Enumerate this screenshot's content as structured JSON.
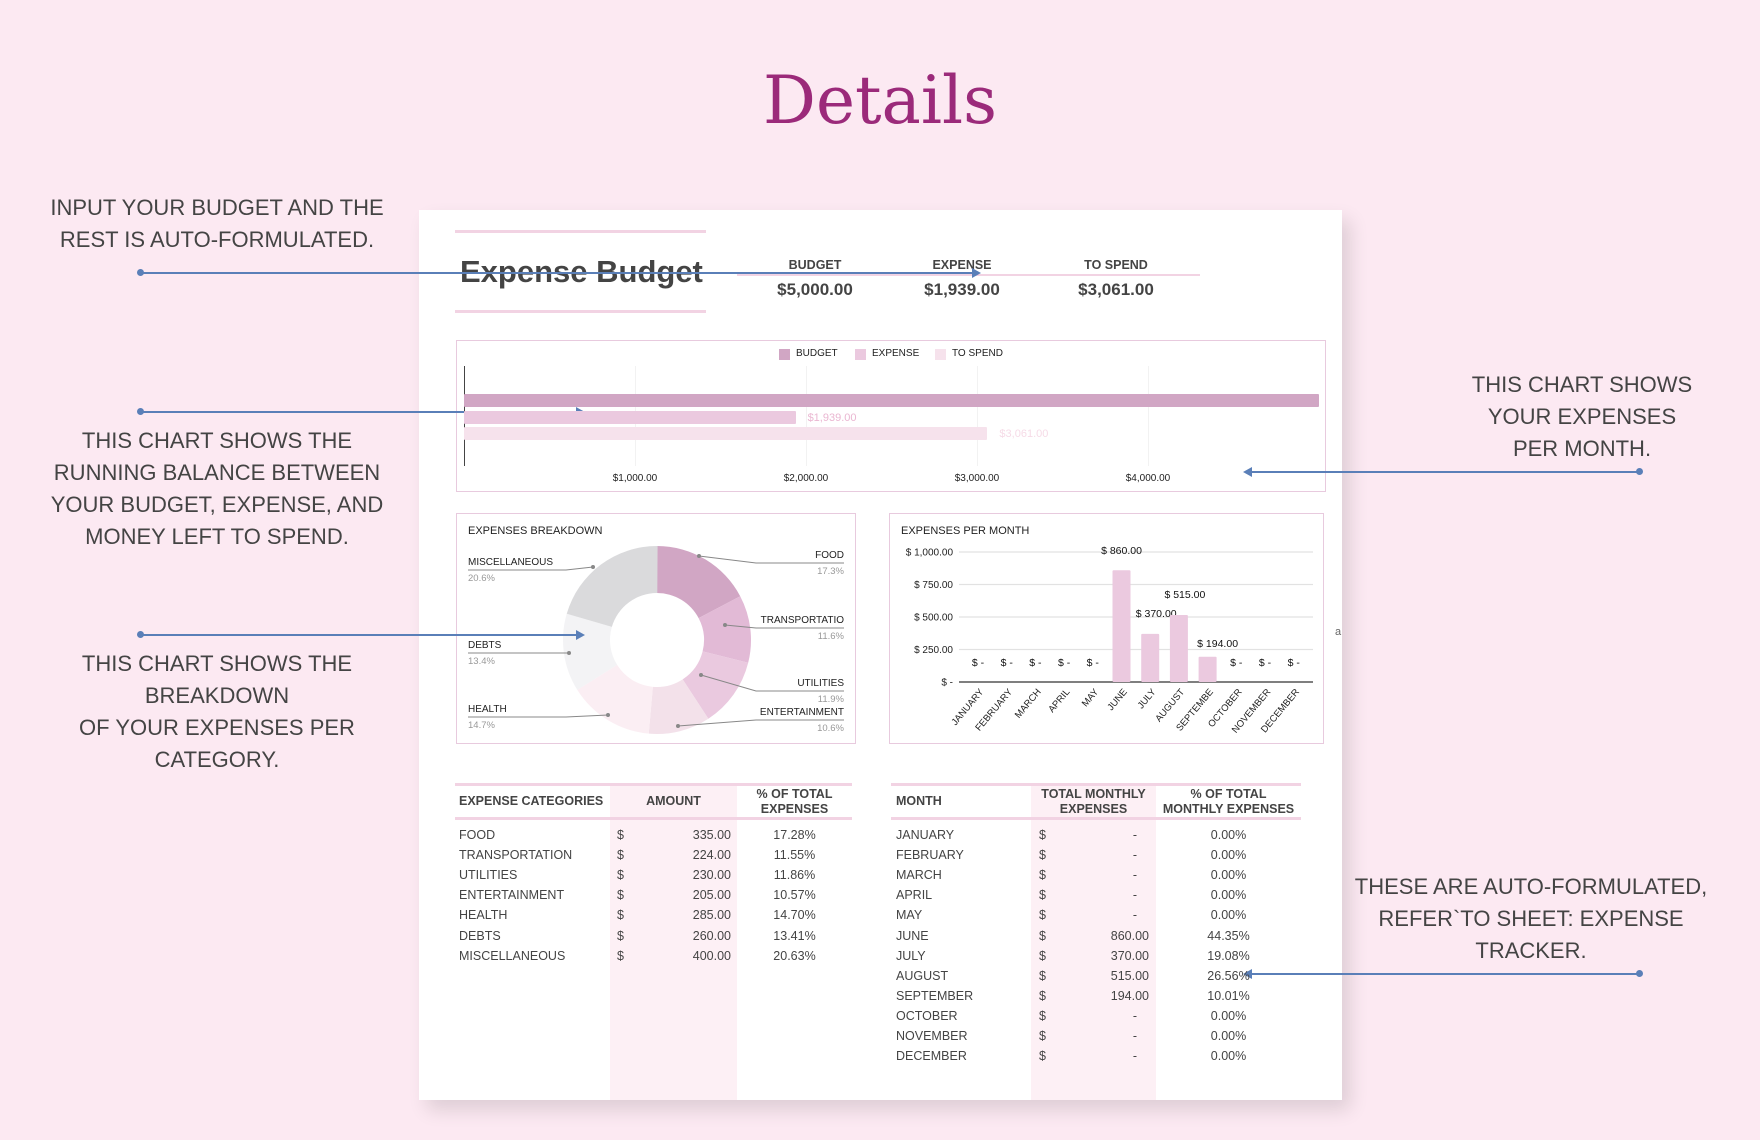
{
  "page_title": "Details",
  "notes": {
    "budget_input": "INPUT YOUR BUDGET AND THE\nREST IS AUTO-FORMULATED.",
    "running_balance": "THIS CHART SHOWS THE\nRUNNING BALANCE BETWEEN\nYOUR BUDGET, EXPENSE, AND\nMONEY LEFT TO SPEND.",
    "breakdown": "THIS CHART SHOWS THE\nBREAKDOWN\nOF YOUR EXPENSES PER\nCATEGORY.",
    "per_month": "THIS CHART SHOWS\nYOUR EXPENSES\nPER MONTH.",
    "auto": "THESE ARE AUTO-FORMULATED,\nREFER`TO SHEET: EXPENSE\nTRACKER.",
    "stray": "a"
  },
  "sheet": {
    "title": "Expense Budget",
    "summary": [
      {
        "label": "BUDGET",
        "value": "$5,000.00"
      },
      {
        "label": "EXPENSE",
        "value": "$1,939.00"
      },
      {
        "label": "TO SPEND",
        "value": "$3,061.00"
      }
    ]
  },
  "colors": {
    "accent": "#9b2a7a",
    "budget": "#d1a6c4",
    "expense": "#ebc9df",
    "to_spend": "#f6e2ec",
    "arrow": "#5a7fb8"
  },
  "chart_data": [
    {
      "type": "bar",
      "orientation": "horizontal",
      "legend": [
        "BUDGET",
        "EXPENSE",
        "TO SPEND"
      ],
      "legend_position": "top",
      "series": [
        {
          "name": "BUDGET",
          "value": 5000,
          "label": ""
        },
        {
          "name": "EXPENSE",
          "value": 1939,
          "label": "$1,939.00"
        },
        {
          "name": "TO SPEND",
          "value": 3061,
          "label": "$3,061.00"
        }
      ],
      "xticks": [
        "$1,000.00",
        "$2,000.00",
        "$3,000.00",
        "$4,000.00"
      ],
      "xtick_values": [
        1000,
        2000,
        3000,
        4000
      ],
      "xlim": [
        0,
        5000
      ]
    },
    {
      "type": "pie",
      "donut": true,
      "title": "EXPENSES BREAKDOWN",
      "slices": [
        {
          "label": "FOOD",
          "pct": "17.3%",
          "value": 17.3,
          "color": "#d1a6c4"
        },
        {
          "label": "TRANSPORTATIO",
          "pct": "11.6%",
          "value": 11.6,
          "color": "#e2bad6"
        },
        {
          "label": "UTILITIES",
          "pct": "11.9%",
          "value": 11.9,
          "color": "#eac9df"
        },
        {
          "label": "ENTERTAINMENT",
          "pct": "10.6%",
          "value": 10.6,
          "color": "#f3e1ea"
        },
        {
          "label": "HEALTH",
          "pct": "14.7%",
          "value": 14.7,
          "color": "#fbeef3"
        },
        {
          "label": "DEBTS",
          "pct": "13.4%",
          "value": 13.4,
          "color": "#f3f3f5"
        },
        {
          "label": "MISCELLANEOUS",
          "pct": "20.6%",
          "value": 20.6,
          "color": "#dadadc"
        }
      ]
    },
    {
      "type": "bar",
      "title": "EXPENSES PER MONTH",
      "categories": [
        "JANUARY",
        "FEBRUARY",
        "MARCH",
        "APRIL",
        "MAY",
        "JUNE",
        "JULY",
        "AUGUST",
        "SEPTEMBE",
        "OCTOBER",
        "NOVEMBER",
        "DECEMBER"
      ],
      "values": [
        0,
        0,
        0,
        0,
        0,
        860,
        370,
        515,
        194,
        0,
        0,
        0
      ],
      "data_labels": [
        "$ -",
        "$ -",
        "$ -",
        "$ -",
        "$ -",
        "$ 860.00",
        "$ 370.00",
        "$ 515.00",
        "$ 194.00",
        "$ -",
        "$ -",
        "$ -"
      ],
      "yticks": [
        "$ -",
        "$ 250.00",
        "$ 500.00",
        "$ 750.00",
        "$ 1,000.00"
      ],
      "ytick_values": [
        0,
        250,
        500,
        750,
        1000
      ],
      "ylim": [
        0,
        1000
      ],
      "grid": true
    }
  ],
  "categories_table": {
    "headers": [
      "EXPENSE CATEGORIES",
      "AMOUNT",
      "% OF TOTAL\nEXPENSES"
    ],
    "rows": [
      {
        "name": "FOOD",
        "cur": "$",
        "amount": "335.00",
        "pct": "17.28%"
      },
      {
        "name": "TRANSPORTATION",
        "cur": "$",
        "amount": "224.00",
        "pct": "11.55%"
      },
      {
        "name": "UTILITIES",
        "cur": "$",
        "amount": "230.00",
        "pct": "11.86%"
      },
      {
        "name": "ENTERTAINMENT",
        "cur": "$",
        "amount": "205.00",
        "pct": "10.57%"
      },
      {
        "name": "HEALTH",
        "cur": "$",
        "amount": "285.00",
        "pct": "14.70%"
      },
      {
        "name": "DEBTS",
        "cur": "$",
        "amount": "260.00",
        "pct": "13.41%"
      },
      {
        "name": "MISCELLANEOUS",
        "cur": "$",
        "amount": "400.00",
        "pct": "20.63%"
      }
    ]
  },
  "months_table": {
    "headers": [
      "MONTH",
      "TOTAL MONTHLY\nEXPENSES",
      "% OF TOTAL\nMONTHLY EXPENSES"
    ],
    "rows": [
      {
        "name": "JANUARY",
        "cur": "$",
        "amount": "-",
        "pct": "0.00%"
      },
      {
        "name": "FEBRUARY",
        "cur": "$",
        "amount": "-",
        "pct": "0.00%"
      },
      {
        "name": "MARCH",
        "cur": "$",
        "amount": "-",
        "pct": "0.00%"
      },
      {
        "name": "APRIL",
        "cur": "$",
        "amount": "-",
        "pct": "0.00%"
      },
      {
        "name": "MAY",
        "cur": "$",
        "amount": "-",
        "pct": "0.00%"
      },
      {
        "name": "JUNE",
        "cur": "$",
        "amount": "860.00",
        "pct": "44.35%"
      },
      {
        "name": "JULY",
        "cur": "$",
        "amount": "370.00",
        "pct": "19.08%"
      },
      {
        "name": "AUGUST",
        "cur": "$",
        "amount": "515.00",
        "pct": "26.56%"
      },
      {
        "name": "SEPTEMBER",
        "cur": "$",
        "amount": "194.00",
        "pct": "10.01%"
      },
      {
        "name": "OCTOBER",
        "cur": "$",
        "amount": "-",
        "pct": "0.00%"
      },
      {
        "name": "NOVEMBER",
        "cur": "$",
        "amount": "-",
        "pct": "0.00%"
      },
      {
        "name": "DECEMBER",
        "cur": "$",
        "amount": "-",
        "pct": "0.00%"
      }
    ]
  }
}
